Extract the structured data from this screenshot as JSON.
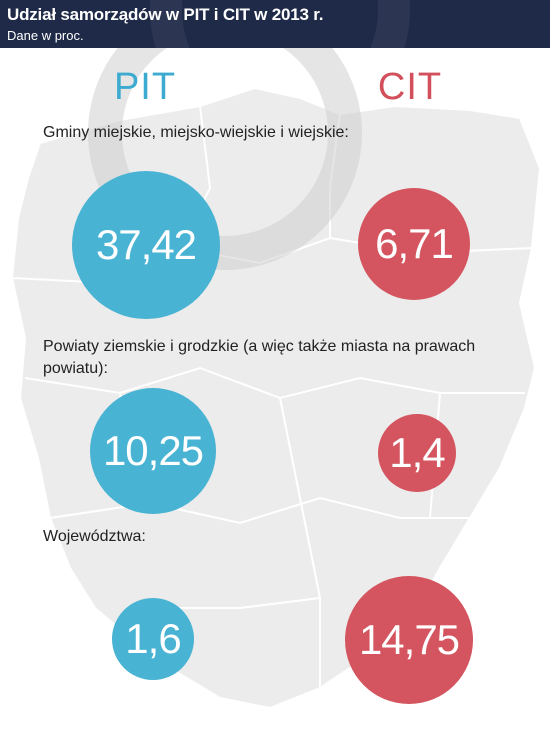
{
  "header": {
    "title": "Udział samorządów w PIT i CIT w 2013 r.",
    "subtitle": "Dane w proc."
  },
  "columns": {
    "pit": "PIT",
    "cit": "CIT"
  },
  "sections": [
    {
      "label": "Gminy miejskie, miejsko-wiejskie i wiejskie:",
      "pit": "37,42",
      "cit": "6,71"
    },
    {
      "label": "Powiaty ziemskie i grodzkie (a więc także miasta na prawach powiatu):",
      "pit": "10,25",
      "cit": "1,4"
    },
    {
      "label": "Województwa:",
      "pit": "1,6",
      "cit": "14,75"
    }
  ],
  "colors": {
    "pit": "#48b3d3",
    "cit": "#d4555f",
    "header": "#1f2a48",
    "map": "#ececec"
  },
  "chart_data": {
    "type": "bubble",
    "title": "Udział samorządów w PIT i CIT w 2013 r.",
    "subtitle": "Dane w proc.",
    "categories": [
      "Gminy miejskie, miejsko-wiejskie i wiejskie",
      "Powiaty ziemskie i grodzkie (a więc także miasta na prawach powiatu)",
      "Województwa"
    ],
    "series": [
      {
        "name": "PIT",
        "values": [
          37.42,
          10.25,
          1.6
        ]
      },
      {
        "name": "CIT",
        "values": [
          6.71,
          1.4,
          14.75
        ]
      }
    ]
  }
}
